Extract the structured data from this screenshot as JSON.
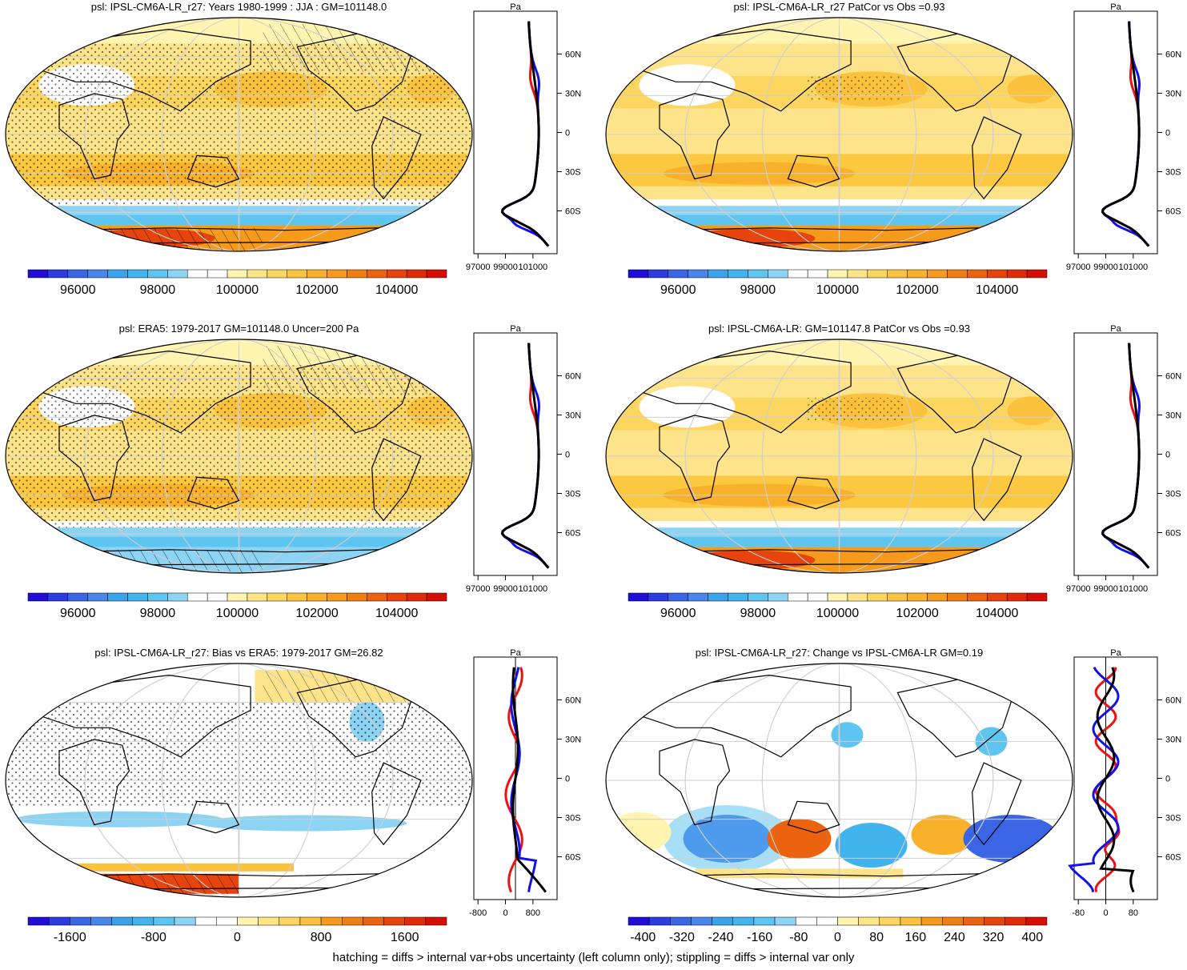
{
  "figure": {
    "footer": "hatching = diffs > internal var+obs uncertainty (left column only); stippling = diffs > internal var only"
  },
  "chart_data": [
    {
      "type": "heatmap",
      "id": "model-mean",
      "title": "psl: IPSL-CM6A-LR_r27: Years 1980-1999 : JJA : GM=101148.0",
      "colorbar": {
        "levels": [
          95000,
          95500,
          96000,
          96500,
          97000,
          97500,
          98000,
          98500,
          99000,
          99500,
          100000,
          100500,
          101000,
          101500,
          102000,
          102500,
          103000,
          103500,
          104000,
          104500,
          105000
        ],
        "colors": [
          "#1f0ed8",
          "#2c3ce0",
          "#3a66e6",
          "#4a86ea",
          "#3aa3ea",
          "#41b4ee",
          "#5ec4f0",
          "#8dd3f3",
          "#ffffff",
          "#ffffff",
          "#fff4b0",
          "#ffe586",
          "#fdd660",
          "#fbc33d",
          "#f9b02a",
          "#f59a1b",
          "#f07f12",
          "#ec630f",
          "#e7440d",
          "#e02a0a",
          "#d60f06"
        ],
        "tick_labels": [
          "96000",
          "98000",
          "100000",
          "102000",
          "104000"
        ],
        "ticks": [
          96000,
          98000,
          100000,
          102000,
          104000
        ]
      },
      "zonal_profile": {
        "unit_label": "Pa",
        "y_tick_labels": [
          "60N",
          "30N",
          "0",
          "30S",
          "60S"
        ],
        "x_tick_labels": [
          "97000",
          "99000",
          "101000"
        ]
      }
    },
    {
      "type": "heatmap",
      "id": "pattern-cor",
      "title": "psl: IPSL-CM6A-LR_r27 PatCor vs Obs =0.93",
      "colorbar": {
        "tick_labels": [
          "96000",
          "98000",
          "100000",
          "102000",
          "104000"
        ],
        "ticks": [
          96000,
          98000,
          100000,
          102000,
          104000
        ]
      },
      "zonal_profile": {
        "unit_label": "Pa",
        "y_tick_labels": [
          "60N",
          "30N",
          "0",
          "30S",
          "60S"
        ],
        "x_tick_labels": [
          "97000",
          "99000",
          "101000"
        ]
      }
    },
    {
      "type": "heatmap",
      "id": "era5",
      "title": "psl: ERA5: 1979-2017 GM=101148.0 Uncer=200 Pa",
      "colorbar": {
        "tick_labels": [
          "96000",
          "98000",
          "100000",
          "102000",
          "104000"
        ],
        "ticks": [
          96000,
          98000,
          100000,
          102000,
          104000
        ]
      },
      "zonal_profile": {
        "unit_label": "Pa",
        "y_tick_labels": [
          "60N",
          "30N",
          "0",
          "30S",
          "60S"
        ],
        "x_tick_labels": [
          "97000",
          "99000",
          "101000"
        ]
      }
    },
    {
      "type": "heatmap",
      "id": "ensemble",
      "title": "psl: IPSL-CM6A-LR: GM=101147.8 PatCor vs Obs =0.93",
      "colorbar": {
        "tick_labels": [
          "96000",
          "98000",
          "100000",
          "102000",
          "104000"
        ],
        "ticks": [
          96000,
          98000,
          100000,
          102000,
          104000
        ]
      },
      "zonal_profile": {
        "unit_label": "Pa",
        "y_tick_labels": [
          "60N",
          "30N",
          "0",
          "30S",
          "60S"
        ],
        "x_tick_labels": [
          "97000",
          "99000",
          "101000"
        ]
      }
    },
    {
      "type": "heatmap",
      "id": "bias",
      "title": "psl: IPSL-CM6A-LR_r27: Bias vs ERA5: 1979-2017 GM=26.82",
      "colorbar": {
        "tick_labels": [
          "-1600",
          "-800",
          "0",
          "800",
          "1600"
        ],
        "ticks": [
          -1600,
          -800,
          0,
          800,
          1600
        ]
      },
      "zonal_profile": {
        "unit_label": "Pa",
        "y_tick_labels": [
          "60N",
          "30N",
          "0",
          "30S",
          "60S"
        ],
        "x_tick_labels": [
          "-800",
          "0",
          "800"
        ]
      }
    },
    {
      "type": "heatmap",
      "id": "change",
      "title": "psl: IPSL-CM6A-LR_r27: Change vs IPSL-CM6A-LR GM=0.19",
      "colorbar": {
        "tick_labels": [
          "-400",
          "-320",
          "-240",
          "-160",
          "-80",
          "0",
          "80",
          "160",
          "240",
          "320",
          "400"
        ],
        "ticks": [
          -400,
          -320,
          -240,
          -160,
          -80,
          0,
          80,
          160,
          240,
          320,
          400
        ]
      },
      "zonal_profile": {
        "unit_label": "Pa",
        "y_tick_labels": [
          "60N",
          "30N",
          "0",
          "30S",
          "60S"
        ],
        "x_tick_labels": [
          "-80",
          "0",
          "80"
        ]
      }
    }
  ]
}
